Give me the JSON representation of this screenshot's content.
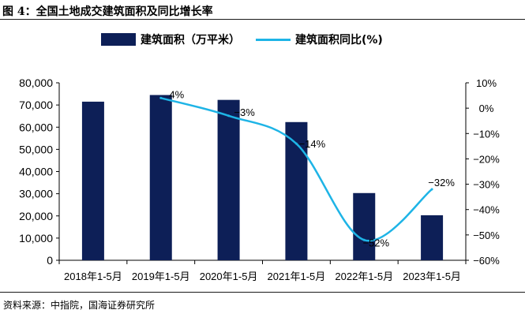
{
  "title": "图 4：全国土地成交建筑面积及同比增长率",
  "source": "资料来源：中指院，国海证券研究所",
  "colors": {
    "bar": "#0d1f57",
    "line": "#1eb4e6",
    "axis": "#000000",
    "text": "#000000"
  },
  "chart_data": {
    "type": "bar",
    "categories": [
      "2018年1-5月",
      "2019年1-5月",
      "2020年1-5月",
      "2021年1-5月",
      "2022年1-5月",
      "2023年1-5月"
    ],
    "series": [
      {
        "name": "建筑面积（万平米）",
        "type": "bar",
        "axis": "left",
        "values": [
          71500,
          74500,
          72300,
          62300,
          30300,
          20300
        ]
      },
      {
        "name": "建筑面积同比(%)",
        "type": "line",
        "axis": "right",
        "values": [
          null,
          4,
          -3,
          -14,
          -52,
          -32
        ],
        "labels": [
          null,
          "4%",
          "−3%",
          "−14%",
          "−52%",
          "−32%"
        ]
      }
    ],
    "y_left": {
      "min": 0,
      "max": 80000,
      "ticks": [
        "0",
        "10,000",
        "20,000",
        "30,000",
        "40,000",
        "50,000",
        "60,000",
        "70,000",
        "80,000"
      ]
    },
    "y_right": {
      "min": -60,
      "max": 10,
      "ticks": [
        "−60%",
        "−50%",
        "−40%",
        "−30%",
        "−20%",
        "−10%",
        "0%",
        "10%"
      ]
    },
    "legend_position": "top",
    "grid": false
  }
}
